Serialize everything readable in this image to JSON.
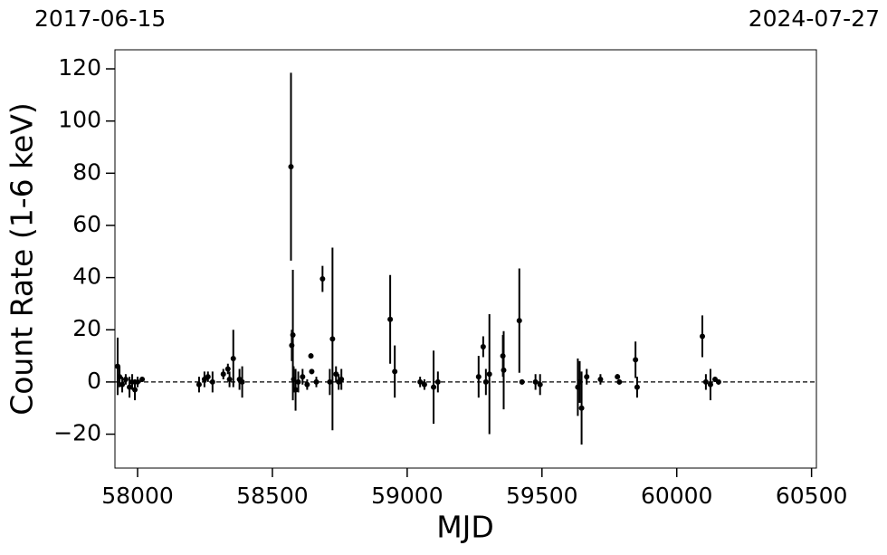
{
  "chart_data": {
    "type": "errorbar-scatter",
    "top_labels": [
      "2017-06-15",
      "2024-07-27"
    ],
    "x_label": "MJD",
    "y_label": "Count Rate (1-6 keV)",
    "xlim": [
      57916,
      60518
    ],
    "ylim": [
      -33,
      127.3
    ],
    "xticks": [
      58000,
      58500,
      59000,
      59500,
      60000,
      60500
    ],
    "yticks": [
      {
        "value": -20,
        "label": "−20"
      },
      0,
      20,
      40,
      60,
      80,
      100,
      120
    ],
    "hline": 0,
    "color": "#000000",
    "series": [
      {
        "x": [
          57926,
          57933,
          57943,
          57956,
          57970,
          57980,
          57990,
          58000,
          58017,
          58228,
          58248,
          58261,
          58278,
          58318,
          58335,
          58341,
          58355,
          58378,
          58388,
          58569,
          58576,
          58572,
          58579,
          58586,
          58596,
          58612,
          58629,
          58643,
          58646,
          58663,
          58686,
          58713,
          58723,
          58736,
          58746,
          58756,
          58937,
          58954,
          59048,
          59064,
          59098,
          59114,
          59265,
          59282,
          59292,
          59305,
          59355,
          59358,
          59416,
          59426,
          59476,
          59493,
          59633,
          59640,
          59647,
          59666,
          59717,
          59780,
          59787,
          59847,
          59853,
          60095,
          60108,
          60125,
          60142,
          60155
        ],
        "values": [
          6,
          2,
          -1,
          1,
          -2,
          0,
          -3,
          0,
          1,
          -1,
          1,
          2,
          0,
          3,
          5,
          1,
          9,
          1,
          0,
          82.5,
          18,
          14,
          1,
          -3,
          0,
          2,
          -1,
          10,
          4,
          0,
          39.5,
          0,
          16.5,
          3,
          0,
          1,
          24,
          4,
          0,
          -1,
          -2,
          0,
          2,
          13.5,
          0,
          3,
          10,
          4.5,
          23.5,
          0,
          0,
          -1,
          -2,
          0,
          -10,
          2,
          1,
          2,
          0,
          8.5,
          -2,
          17.5,
          0,
          -1,
          1,
          0
        ],
        "errors": [
          11,
          4,
          3,
          2,
          4,
          3,
          4,
          2,
          1,
          3,
          3,
          2,
          4,
          2,
          2,
          3,
          11,
          4,
          6,
          36,
          25,
          6,
          5,
          8,
          4,
          3,
          2,
          1,
          1,
          2,
          5,
          5,
          35,
          3,
          3,
          4,
          17,
          10,
          2,
          2,
          14,
          4,
          8,
          4,
          5,
          23,
          8,
          15,
          20,
          1,
          3,
          4,
          11,
          8,
          14,
          3,
          2,
          1,
          1,
          7,
          4,
          8,
          3,
          6,
          1,
          1
        ]
      }
    ]
  }
}
